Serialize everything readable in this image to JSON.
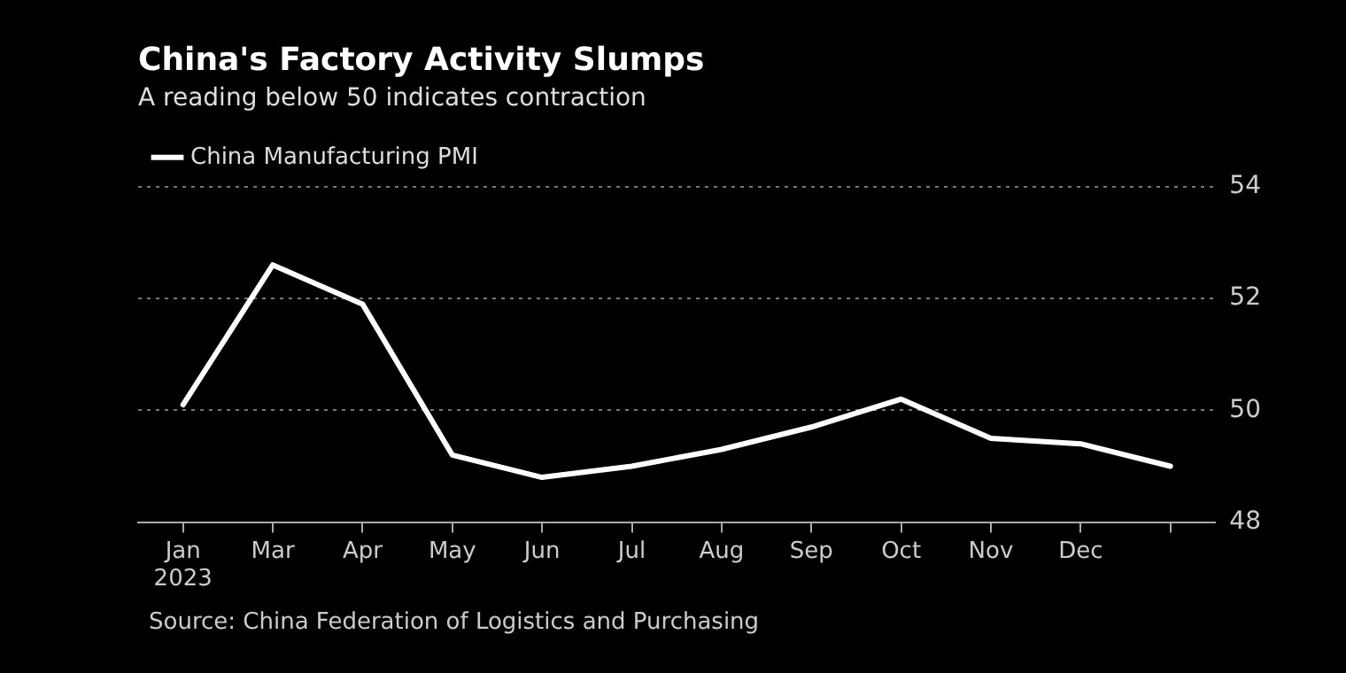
{
  "chart_data": {
    "type": "line",
    "title": "China's Factory Activity Slumps",
    "subtitle": "A reading below 50 indicates contraction",
    "categories": [
      "Jan\n2023",
      "Mar",
      "Apr",
      "May",
      "Jun",
      "Jul",
      "Aug",
      "Sep",
      "Oct",
      "Nov",
      "Dec",
      null
    ],
    "series": [
      {
        "name": "China Manufacturing PMI",
        "color": "#ffffff",
        "values": [
          50.1,
          52.6,
          51.9,
          49.2,
          48.8,
          49.0,
          49.3,
          49.7,
          50.2,
          49.5,
          49.4,
          49.0
        ]
      }
    ],
    "ylim": [
      48,
      54
    ],
    "yticks": [
      48,
      50,
      52,
      54
    ],
    "grid": "y",
    "legend": "top left",
    "line_style": "solid",
    "marker": "none",
    "annotations": [
      "Source: China Federation of Logistics and Purchasing"
    ]
  }
}
